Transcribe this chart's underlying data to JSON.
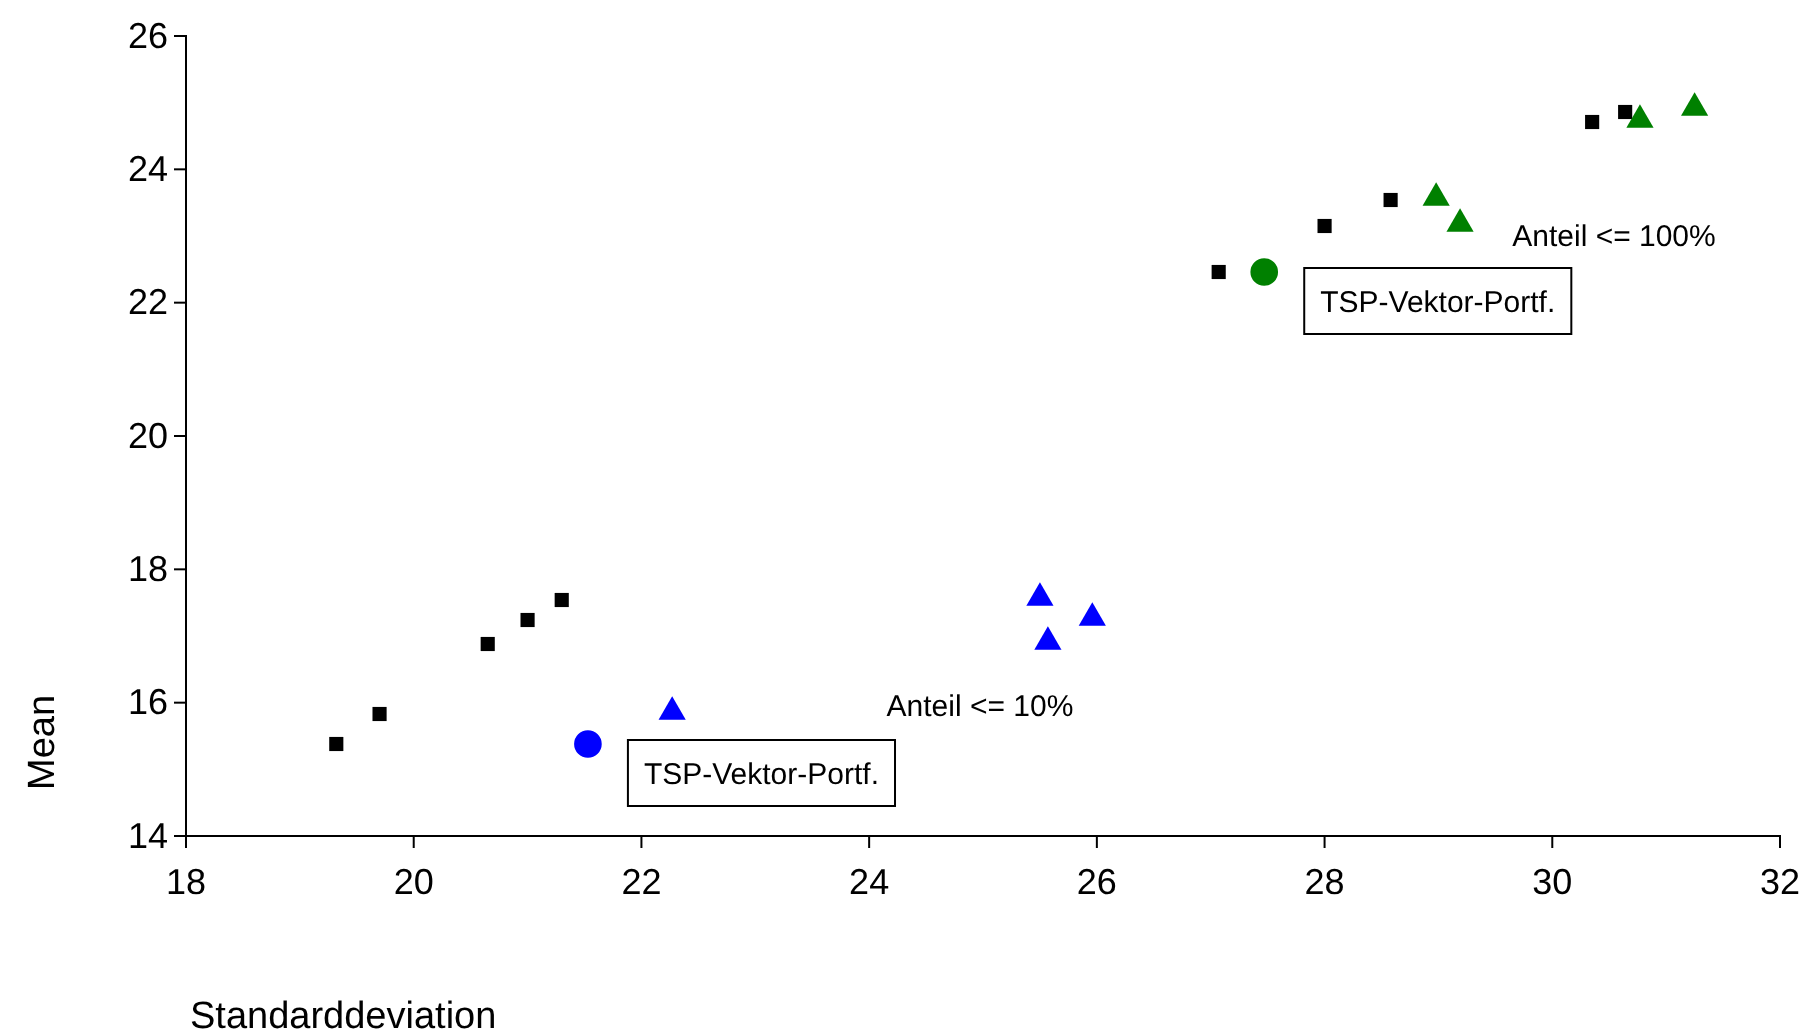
{
  "chart_data": {
    "type": "scatter",
    "xlabel": "Standarddeviation",
    "ylabel": "Mean",
    "xlim": [
      18,
      32
    ],
    "xticks": [
      18,
      20,
      22,
      24,
      26,
      28,
      30,
      32
    ],
    "ylim": [
      14,
      26
    ],
    "yticks": [
      14,
      16,
      18,
      20,
      22,
      24,
      26
    ],
    "grid": false,
    "series": [
      {
        "color": "#000000",
        "marker": "square",
        "x": [
          19.32,
          19.7,
          20.65,
          21.0,
          21.3,
          27.07,
          28.0,
          28.58,
          30.35,
          30.64
        ],
        "values": [
          15.38,
          15.83,
          16.88,
          17.24,
          17.54,
          22.46,
          23.15,
          23.54,
          24.71,
          24.86
        ]
      },
      {
        "color": "#0000ff",
        "marker": "triangle",
        "x": [
          22.27,
          25.5,
          25.57,
          25.96
        ],
        "values": [
          15.86,
          17.57,
          16.91,
          17.27
        ]
      },
      {
        "color": "#008000",
        "marker": "triangle",
        "x": [
          28.98,
          29.19,
          30.77,
          31.25
        ],
        "values": [
          23.57,
          23.18,
          24.74,
          24.92
        ]
      },
      {
        "name": "TSP-Vektor-Portf.",
        "color": "#0000ff",
        "marker": "circle",
        "x": [
          21.53
        ],
        "values": [
          15.38
        ]
      },
      {
        "name": "TSP-Vektor-Portf.",
        "color": "#008000",
        "marker": "circle",
        "x": [
          27.47
        ],
        "values": [
          22.46
        ]
      }
    ],
    "annotations": [
      "Anteil <= 10%",
      "Anteil <= 100%"
    ]
  }
}
